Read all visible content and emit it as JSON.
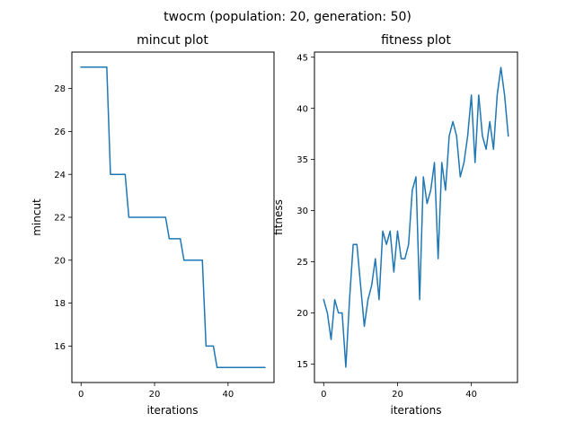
{
  "figure": {
    "suptitle": "twocm (population: 20, generation: 50)",
    "line_color": "#1f77b4"
  },
  "chart_data": [
    {
      "type": "line",
      "title": "mincut plot",
      "xlabel": "iterations",
      "ylabel": "mincut",
      "xlim": [
        -2.5,
        52.5
      ],
      "ylim": [
        14.3,
        29.7
      ],
      "xticks": [
        0,
        20,
        40
      ],
      "yticks": [
        16,
        18,
        20,
        22,
        24,
        26,
        28
      ],
      "grid": false,
      "series": [
        {
          "x": [
            0,
            1,
            2,
            3,
            4,
            5,
            6,
            7,
            8,
            9,
            10,
            11,
            12,
            13,
            14,
            15,
            16,
            17,
            18,
            19,
            20,
            21,
            22,
            23,
            24,
            25,
            26,
            27,
            28,
            29,
            30,
            31,
            32,
            33,
            34,
            35,
            36,
            37,
            38,
            39,
            40,
            41,
            42,
            43,
            44,
            45,
            46,
            47,
            48,
            49,
            50
          ],
          "y": [
            29,
            29,
            29,
            29,
            29,
            29,
            29,
            29,
            24,
            24,
            24,
            24,
            24,
            22,
            22,
            22,
            22,
            22,
            22,
            22,
            22,
            22,
            22,
            22,
            21,
            21,
            21,
            21,
            20,
            20,
            20,
            20,
            20,
            20,
            16,
            16,
            16,
            15,
            15,
            15,
            15,
            15,
            15,
            15,
            15,
            15,
            15,
            15,
            15,
            15,
            15
          ]
        }
      ]
    },
    {
      "type": "line",
      "title": "fitness plot",
      "xlabel": "iterations",
      "ylabel": "fitness",
      "xlim": [
        -2.5,
        52.5
      ],
      "ylim": [
        13.2,
        45.5
      ],
      "xticks": [
        0,
        20,
        40
      ],
      "yticks": [
        15,
        20,
        25,
        30,
        35,
        40,
        45
      ],
      "grid": false,
      "series": [
        {
          "x": [
            0,
            1,
            2,
            3,
            4,
            5,
            6,
            7,
            8,
            9,
            10,
            11,
            12,
            13,
            14,
            15,
            16,
            17,
            18,
            19,
            20,
            21,
            22,
            23,
            24,
            25,
            26,
            27,
            28,
            29,
            30,
            31,
            32,
            33,
            34,
            35,
            36,
            37,
            38,
            39,
            40,
            41,
            42,
            43,
            44,
            45,
            46,
            47,
            48,
            49,
            50
          ],
          "y": [
            21.3,
            20.0,
            17.4,
            21.3,
            20.0,
            20.0,
            14.7,
            21.3,
            26.7,
            26.7,
            22.7,
            18.7,
            21.3,
            22.7,
            25.3,
            21.3,
            28.0,
            26.7,
            28.0,
            24.0,
            28.0,
            25.3,
            25.3,
            26.7,
            32.0,
            33.3,
            21.3,
            33.3,
            30.7,
            32.0,
            34.7,
            25.3,
            34.7,
            32.0,
            37.3,
            38.7,
            37.3,
            33.3,
            34.7,
            37.3,
            41.3,
            34.7,
            41.3,
            37.3,
            36.0,
            38.7,
            36.0,
            41.3,
            44.0,
            41.3,
            37.3
          ]
        }
      ]
    }
  ]
}
